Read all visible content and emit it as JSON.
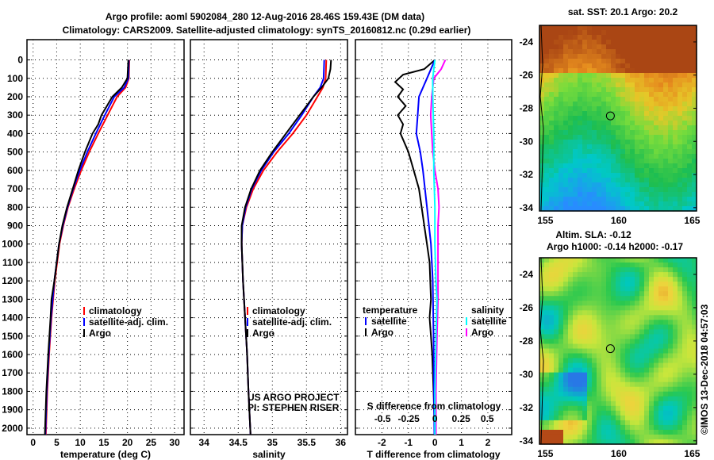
{
  "title_line1": "Argo profile: aoml 5902084_280 12-Aug-2016 28.46S 159.43E (DM data)",
  "title_line2": "Climatology: CARS2009. Satellite-adjusted climatology: synTS_20160812.nc (0.29d earlier)",
  "credit": "US ARGO PROJECT",
  "pi": "PI: STEPHEN RISER",
  "timestamp": "©IMOS 13-Dec-2018 04:57:03",
  "colors": {
    "climatology": "#ff0000",
    "satellite": "#0000ff",
    "argo": "#000000",
    "sal_satellite": "#00ffff",
    "sal_argo": "#ff00ff"
  },
  "chart_data": [
    {
      "type": "line",
      "name": "temperature",
      "xlabel": "temperature (deg C)",
      "ylabel": "",
      "xlim": [
        -1.3,
        32
      ],
      "ylim": [
        -110,
        2035
      ],
      "xticks": [
        0,
        5,
        10,
        15,
        20,
        25,
        30
      ],
      "yticks": [
        0,
        100,
        200,
        300,
        400,
        500,
        600,
        700,
        800,
        900,
        1000,
        1100,
        1200,
        1300,
        1400,
        1500,
        1600,
        1700,
        1800,
        1900,
        2000
      ],
      "grid": true,
      "legend": [
        "climatology",
        "satellite-adj. clim.",
        "Argo"
      ],
      "series": [
        {
          "name": "climatology",
          "color": "#ff0000",
          "depth": [
            0,
            100,
            150,
            200,
            300,
            400,
            500,
            600,
            700,
            800,
            900,
            1000,
            1200,
            1400,
            1600,
            1800,
            2050
          ],
          "values": [
            20.4,
            20.3,
            19.6,
            17.8,
            15.8,
            13.8,
            11.9,
            10.2,
            8.7,
            7.4,
            6.4,
            5.6,
            4.6,
            3.9,
            3.4,
            3.0,
            2.7
          ]
        },
        {
          "name": "satellite-adj. clim.",
          "color": "#0000ff",
          "depth": [
            0,
            100,
            150,
            200,
            300,
            400,
            500,
            600,
            700,
            800,
            900,
            1000,
            1200,
            1400,
            1600,
            1800,
            2050
          ],
          "values": [
            20.3,
            20.2,
            19.3,
            17.2,
            15.2,
            13.3,
            11.5,
            9.9,
            8.5,
            7.3,
            6.3,
            5.5,
            4.5,
            3.8,
            3.3,
            2.9,
            2.6
          ]
        },
        {
          "name": "Argo",
          "color": "#000000",
          "depth": [
            0,
            100,
            150,
            200,
            300,
            350,
            400,
            500,
            600,
            700,
            800,
            900,
            1000,
            1200,
            1300,
            1400,
            1600,
            1800,
            2050
          ],
          "values": [
            20.2,
            20.0,
            18.8,
            16.8,
            14.5,
            13.8,
            12.6,
            11.0,
            9.6,
            8.4,
            7.2,
            6.2,
            5.5,
            4.5,
            3.9,
            3.7,
            3.2,
            2.8,
            2.5
          ]
        }
      ]
    },
    {
      "type": "line",
      "name": "salinity",
      "xlabel": "salinity",
      "ylabel": "",
      "xlim": [
        33.8,
        36.1
      ],
      "ylim": [
        -110,
        2035
      ],
      "xticks": [
        34,
        34.5,
        35,
        35.5,
        36
      ],
      "grid": true,
      "legend": [
        "climatology",
        "satellite-adj. clim.",
        "Argo"
      ],
      "series": [
        {
          "name": "climatology",
          "color": "#ff0000",
          "depth": [
            0,
            100,
            150,
            200,
            300,
            400,
            500,
            600,
            700,
            800,
            900,
            1000,
            1200,
            1400,
            1600,
            1800,
            2050
          ],
          "values": [
            35.79,
            35.78,
            35.74,
            35.66,
            35.5,
            35.3,
            35.07,
            34.87,
            34.72,
            34.62,
            34.56,
            34.55,
            34.57,
            34.6,
            34.63,
            34.65,
            34.68
          ]
        },
        {
          "name": "satellite-adj. clim.",
          "color": "#0000ff",
          "depth": [
            0,
            100,
            150,
            200,
            300,
            400,
            500,
            600,
            700,
            800,
            900,
            1000,
            1200,
            1400,
            1600,
            1800,
            2050
          ],
          "values": [
            35.76,
            35.75,
            35.7,
            35.6,
            35.43,
            35.24,
            35.02,
            34.84,
            34.7,
            34.61,
            34.56,
            34.55,
            34.57,
            34.6,
            34.63,
            34.65,
            34.68
          ]
        },
        {
          "name": "Argo",
          "color": "#000000",
          "depth": [
            0,
            50,
            100,
            150,
            200,
            300,
            400,
            500,
            600,
            700,
            800,
            900,
            1000,
            1200,
            1400,
            1600,
            1800,
            2050
          ],
          "values": [
            35.86,
            35.85,
            35.82,
            35.72,
            35.6,
            35.4,
            35.2,
            35.0,
            34.82,
            34.69,
            34.6,
            34.55,
            34.55,
            34.57,
            34.6,
            34.63,
            34.65,
            34.68
          ]
        }
      ]
    },
    {
      "type": "line",
      "name": "difference",
      "xlabel": "T difference from climatology",
      "x2label": "S difference from climatology",
      "xlim": [
        -3,
        2.9
      ],
      "ylim": [
        -110,
        2035
      ],
      "xticks": [
        -2,
        -1,
        0,
        1,
        2
      ],
      "x2ticks": [
        "-0.5",
        "-0.25",
        "0",
        "0.25",
        "0.5"
      ],
      "grid": true,
      "legend_t_title": "temperature",
      "legend_s_title": "salinity",
      "legend_t": [
        "satellite",
        "Argo"
      ],
      "legend_s": [
        "satellite",
        "Argo"
      ],
      "series": [
        {
          "name": "T Argo",
          "color": "#000000",
          "units": "T",
          "depth": [
            0,
            50,
            80,
            120,
            160,
            200,
            250,
            300,
            350,
            400,
            500,
            600,
            700,
            800,
            900,
            1000,
            1100,
            1300,
            1400,
            1500,
            1600,
            1800,
            2050
          ],
          "values": [
            0,
            -0.4,
            -1.2,
            -1.5,
            -1.2,
            -1.4,
            -1.1,
            -1.4,
            -1.2,
            -1.3,
            -1.0,
            -0.8,
            -0.6,
            -0.5,
            -0.4,
            -0.3,
            -0.2,
            -0.15,
            -0.2,
            -0.15,
            -0.1,
            -0.05,
            0
          ]
        },
        {
          "name": "T satellite",
          "color": "#0000ff",
          "units": "T",
          "depth": [
            0,
            100,
            200,
            300,
            400,
            500,
            600,
            800,
            1000,
            1200,
            1500,
            2050
          ],
          "values": [
            0,
            -0.3,
            -0.6,
            -0.65,
            -0.7,
            -0.55,
            -0.45,
            -0.3,
            -0.15,
            -0.08,
            -0.05,
            -0.02
          ]
        },
        {
          "name": "S Argo",
          "color": "#ff00ff",
          "units": "S",
          "depth": [
            0,
            50,
            100,
            200,
            300,
            400,
            500,
            600,
            700,
            800,
            900,
            1000,
            1200,
            1300,
            1500,
            1800,
            2050
          ],
          "values": [
            0.1,
            0.06,
            -0.01,
            -0.03,
            -0.04,
            -0.03,
            -0.02,
            0.0,
            0.03,
            0.04,
            0.03,
            0.03,
            0.03,
            0.03,
            0.02,
            0.01,
            0.01
          ]
        },
        {
          "name": "S satellite",
          "color": "#00ffff",
          "units": "S",
          "depth": [
            0,
            50,
            100,
            200,
            400,
            600,
            800,
            1000,
            1200,
            1300,
            1500,
            1800,
            2050
          ],
          "values": [
            0,
            -0.01,
            -0.02,
            -0.02,
            -0.01,
            -0.01,
            0.0,
            0.0,
            0.01,
            0.02,
            0.01,
            0.0,
            0.0
          ]
        }
      ]
    },
    {
      "type": "heatmap",
      "name": "sst-map",
      "title": "sat. SST: 20.1 Argo: 20.2",
      "xlim": [
        154.6,
        165.3
      ],
      "ylim": [
        -34.2,
        -23
      ],
      "xticks": [
        155,
        160,
        165
      ],
      "yticks": [
        -24,
        -26,
        -28,
        -30,
        -32,
        -34
      ],
      "argo_position": [
        159.43,
        -28.46
      ]
    },
    {
      "type": "heatmap",
      "name": "sla-map",
      "title": "Altim. SLA: -0.12",
      "subtitle": "Argo h1000: -0.14 h2000: -0.17",
      "xlim": [
        154.6,
        165.3
      ],
      "ylim": [
        -34.2,
        -23
      ],
      "xticks": [
        155,
        160,
        165
      ],
      "yticks": [
        -24,
        -26,
        -28,
        -30,
        -32,
        -34
      ],
      "argo_position": [
        159.43,
        -28.46
      ]
    }
  ]
}
